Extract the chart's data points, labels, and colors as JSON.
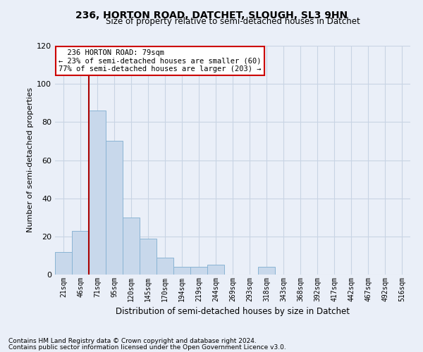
{
  "title": "236, HORTON ROAD, DATCHET, SLOUGH, SL3 9HN",
  "subtitle": "Size of property relative to semi-detached houses in Datchet",
  "xlabel": "Distribution of semi-detached houses by size in Datchet",
  "ylabel": "Number of semi-detached properties",
  "footnote1": "Contains HM Land Registry data © Crown copyright and database right 2024.",
  "footnote2": "Contains public sector information licensed under the Open Government Licence v3.0.",
  "bar_labels": [
    "21sqm",
    "46sqm",
    "71sqm",
    "95sqm",
    "120sqm",
    "145sqm",
    "170sqm",
    "194sqm",
    "219sqm",
    "244sqm",
    "269sqm",
    "293sqm",
    "318sqm",
    "343sqm",
    "368sqm",
    "392sqm",
    "417sqm",
    "442sqm",
    "467sqm",
    "492sqm",
    "516sqm"
  ],
  "bar_values": [
    12,
    23,
    86,
    70,
    30,
    19,
    9,
    4,
    4,
    5,
    0,
    0,
    4,
    0,
    0,
    0,
    0,
    0,
    0,
    0,
    0
  ],
  "bar_color": "#c8d8eb",
  "bar_edge_color": "#8ab4d4",
  "property_line_x": 1.5,
  "property_sqm": 79,
  "property_label": "236 HORTON ROAD: 79sqm",
  "smaller_pct": 23,
  "smaller_n": 60,
  "larger_pct": 77,
  "larger_n": 203,
  "annotation_box_color": "#ffffff",
  "annotation_box_edge": "#cc0000",
  "vline_color": "#aa0000",
  "grid_color": "#c8d4e4",
  "background_color": "#eaeff8",
  "ylim": [
    0,
    120
  ],
  "yticks": [
    0,
    20,
    40,
    60,
    80,
    100,
    120
  ]
}
